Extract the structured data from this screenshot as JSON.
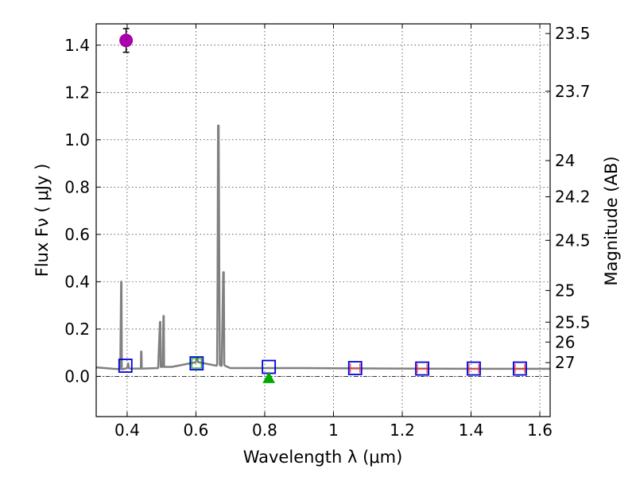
{
  "chart_data": {
    "type": "line",
    "xlabel": "Wavelength  λ (μm)",
    "ylabel": "Flux  Fν  ( μJy )",
    "y2label": "Magnitude (AB)",
    "xlim": [
      0.31,
      1.63
    ],
    "ylim": [
      -0.17,
      1.49
    ],
    "grid": true,
    "xticks": [
      0.4,
      0.6,
      0.8,
      1.0,
      1.2,
      1.4,
      1.6
    ],
    "xtick_labels": [
      "0.4",
      "0.6",
      "0.8",
      "1",
      "1.2",
      "1.4",
      "1.6"
    ],
    "yticks": [
      0.0,
      0.2,
      0.4,
      0.6,
      0.8,
      1.0,
      1.2,
      1.4
    ],
    "ytick_labels": [
      "0.0",
      "0.2",
      "0.4",
      "0.6",
      "0.8",
      "1.0",
      "1.2",
      "1.4"
    ],
    "mag_ticks": [
      {
        "label": "23.5",
        "y": 1.449
      },
      {
        "label": "23.7",
        "y": 1.205
      },
      {
        "label": "24",
        "y": 0.912
      },
      {
        "label": "24.2",
        "y": 0.759
      },
      {
        "label": "24.5",
        "y": 0.575
      },
      {
        "label": "25",
        "y": 0.363
      },
      {
        "label": "25.5",
        "y": 0.229
      },
      {
        "label": "26",
        "y": 0.145
      },
      {
        "label": "27",
        "y": 0.058
      }
    ],
    "model_spectrum": {
      "name": "model SED",
      "color": "#808080",
      "x": [
        0.31,
        0.36,
        0.38,
        0.3825,
        0.3835,
        0.3845,
        0.387,
        0.4,
        0.403,
        0.405,
        0.407,
        0.44,
        0.4405,
        0.4415,
        0.4425,
        0.443,
        0.49,
        0.4955,
        0.4965,
        0.4975,
        0.4985,
        0.503,
        0.5055,
        0.5065,
        0.5075,
        0.5085,
        0.53,
        0.6,
        0.603,
        0.607,
        0.66,
        0.6615,
        0.663,
        0.6645,
        0.666,
        0.668,
        0.6695,
        0.671,
        0.675,
        0.6795,
        0.681,
        0.6825,
        0.684,
        0.7,
        0.8,
        0.9,
        1.0,
        1.2,
        1.4,
        1.63
      ],
      "y": [
        0.038,
        0.032,
        0.031,
        0.4,
        0.4,
        0.03,
        0.03,
        0.035,
        0.055,
        0.035,
        0.033,
        0.033,
        0.105,
        0.105,
        0.033,
        0.033,
        0.035,
        0.23,
        0.23,
        0.04,
        0.04,
        0.04,
        0.255,
        0.255,
        0.04,
        0.04,
        0.04,
        0.06,
        0.08,
        0.06,
        0.045,
        0.05,
        0.4,
        1.06,
        1.06,
        0.4,
        0.05,
        0.045,
        0.045,
        0.44,
        0.44,
        0.05,
        0.045,
        0.035,
        0.035,
        0.035,
        0.034,
        0.033,
        0.032,
        0.032
      ]
    },
    "observed_point": {
      "name": "observed flux",
      "x": 0.397,
      "y": 1.42,
      "yerr": 0.05,
      "color": "#aa00aa"
    },
    "upper_limit": {
      "name": "non-detection",
      "x": 0.812,
      "y": -0.01,
      "color": "#00aa00"
    },
    "model_photometry": {
      "name": "model band fluxes",
      "color": "#0000dd",
      "x": [
        0.395,
        0.602,
        0.812,
        1.063,
        1.258,
        1.408,
        1.542
      ],
      "y": [
        0.045,
        0.055,
        0.04,
        0.035,
        0.033,
        0.033,
        0.033
      ]
    },
    "upper_limit_bars": {
      "name": "flux limits",
      "color": "#ff3333",
      "x": [
        1.063,
        1.258,
        1.408,
        1.542
      ],
      "y": [
        0.035,
        0.033,
        0.033,
        0.033
      ]
    },
    "green_square": {
      "name": "band flux",
      "x": 0.602,
      "y": 0.055,
      "color": "#00aa00"
    }
  }
}
